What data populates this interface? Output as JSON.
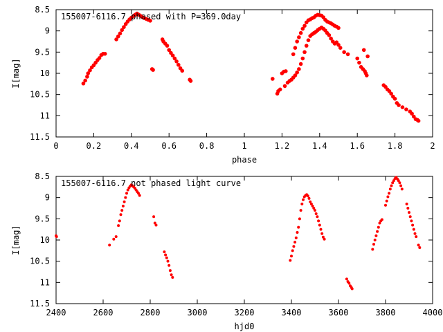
{
  "chart_data": [
    {
      "type": "scatter",
      "title": "155007-6116.7 phased with P=369.0day",
      "xlabel": "phase",
      "ylabel": "I[mag]",
      "xlim": [
        0,
        2
      ],
      "ylim": [
        11.5,
        8.5
      ],
      "y_inverted": true,
      "grid": false,
      "xticks": [
        0,
        0.2,
        0.4,
        0.6,
        0.8,
        1,
        1.2,
        1.4,
        1.6,
        1.8,
        2
      ],
      "xtick_labels": [
        "0",
        "0.2",
        "0.4",
        "0.6",
        "0.8",
        "1",
        "1.2",
        "1.4",
        "1.6",
        "1.8",
        "2"
      ],
      "yticks": [
        8.5,
        9,
        9.5,
        10,
        10.5,
        11,
        11.5
      ],
      "ytick_labels": [
        "8.5",
        "9",
        "9.5",
        "10",
        "10.5",
        "11",
        "11.5"
      ],
      "marker_color": "#ff0000",
      "series": [
        {
          "points": [
            [
              0.145,
              10.24
            ],
            [
              0.155,
              10.17
            ],
            [
              0.165,
              10.08
            ],
            [
              0.17,
              10.0
            ],
            [
              0.18,
              9.93
            ],
            [
              0.19,
              9.86
            ],
            [
              0.2,
              9.81
            ],
            [
              0.21,
              9.75
            ],
            [
              0.22,
              9.69
            ],
            [
              0.23,
              9.64
            ],
            [
              0.24,
              9.57
            ],
            [
              0.25,
              9.54
            ],
            [
              0.26,
              9.54
            ],
            [
              0.32,
              9.2
            ],
            [
              0.33,
              9.13
            ],
            [
              0.34,
              9.06
            ],
            [
              0.35,
              8.98
            ],
            [
              0.36,
              8.91
            ],
            [
              0.37,
              8.84
            ],
            [
              0.38,
              8.78
            ],
            [
              0.39,
              8.73
            ],
            [
              0.4,
              8.69
            ],
            [
              0.41,
              8.65
            ],
            [
              0.42,
              8.62
            ],
            [
              0.43,
              8.59
            ],
            [
              0.44,
              8.62
            ],
            [
              0.45,
              8.65
            ],
            [
              0.46,
              8.68
            ],
            [
              0.47,
              8.7
            ],
            [
              0.48,
              8.72
            ],
            [
              0.49,
              8.74
            ],
            [
              0.5,
              8.76
            ],
            [
              0.51,
              9.9
            ],
            [
              0.515,
              9.92
            ],
            [
              0.565,
              9.2
            ],
            [
              0.57,
              9.25
            ],
            [
              0.58,
              9.3
            ],
            [
              0.59,
              9.35
            ],
            [
              0.6,
              9.45
            ],
            [
              0.61,
              9.52
            ],
            [
              0.62,
              9.58
            ],
            [
              0.63,
              9.65
            ],
            [
              0.64,
              9.72
            ],
            [
              0.65,
              9.8
            ],
            [
              0.66,
              9.88
            ],
            [
              0.67,
              9.94
            ],
            [
              0.71,
              10.15
            ],
            [
              0.715,
              10.18
            ],
            [
              1.15,
              10.13
            ],
            [
              1.175,
              10.48
            ],
            [
              1.18,
              10.42
            ],
            [
              1.19,
              10.38
            ],
            [
              1.2,
              10.0
            ],
            [
              1.21,
              9.96
            ],
            [
              1.215,
              10.3
            ],
            [
              1.22,
              9.95
            ],
            [
              1.23,
              10.22
            ],
            [
              1.24,
              10.18
            ],
            [
              1.25,
              10.15
            ],
            [
              1.26,
              10.1
            ],
            [
              1.27,
              10.05
            ],
            [
              1.28,
              9.98
            ],
            [
              1.29,
              9.9
            ],
            [
              1.3,
              9.78
            ],
            [
              1.31,
              9.65
            ],
            [
              1.32,
              9.5
            ],
            [
              1.33,
              9.35
            ],
            [
              1.34,
              9.22
            ],
            [
              1.35,
              9.12
            ],
            [
              1.36,
              9.08
            ],
            [
              1.37,
              9.05
            ],
            [
              1.38,
              9.02
            ],
            [
              1.39,
              8.98
            ],
            [
              1.4,
              8.95
            ],
            [
              1.41,
              8.92
            ],
            [
              1.42,
              8.95
            ],
            [
              1.43,
              8.99
            ],
            [
              1.44,
              9.05
            ],
            [
              1.45,
              9.1
            ],
            [
              1.46,
              9.18
            ],
            [
              1.47,
              9.25
            ],
            [
              1.48,
              9.3
            ],
            [
              1.49,
              9.27
            ],
            [
              1.5,
              9.33
            ],
            [
              1.51,
              9.4
            ],
            [
              1.26,
              9.55
            ],
            [
              1.27,
              9.4
            ],
            [
              1.28,
              9.25
            ],
            [
              1.29,
              9.15
            ],
            [
              1.3,
              9.05
            ],
            [
              1.31,
              8.95
            ],
            [
              1.32,
              8.88
            ],
            [
              1.33,
              8.8
            ],
            [
              1.34,
              8.75
            ],
            [
              1.35,
              8.73
            ],
            [
              1.36,
              8.7
            ],
            [
              1.37,
              8.68
            ],
            [
              1.38,
              8.64
            ],
            [
              1.39,
              8.62
            ],
            [
              1.4,
              8.63
            ],
            [
              1.41,
              8.64
            ],
            [
              1.42,
              8.68
            ],
            [
              1.43,
              8.74
            ],
            [
              1.44,
              8.78
            ],
            [
              1.45,
              8.8
            ],
            [
              1.46,
              8.82
            ],
            [
              1.47,
              8.85
            ],
            [
              1.48,
              8.88
            ],
            [
              1.49,
              8.9
            ],
            [
              1.5,
              8.93
            ],
            [
              1.53,
              9.5
            ],
            [
              1.55,
              9.55
            ],
            [
              1.6,
              9.65
            ],
            [
              1.61,
              9.75
            ],
            [
              1.62,
              9.85
            ],
            [
              1.63,
              9.9
            ],
            [
              1.635,
              9.45
            ],
            [
              1.64,
              9.95
            ],
            [
              1.645,
              10.0
            ],
            [
              1.65,
              10.05
            ],
            [
              1.655,
              9.6
            ],
            [
              1.74,
              10.28
            ],
            [
              1.75,
              10.32
            ],
            [
              1.76,
              10.38
            ],
            [
              1.77,
              10.42
            ],
            [
              1.78,
              10.48
            ],
            [
              1.79,
              10.55
            ],
            [
              1.8,
              10.6
            ],
            [
              1.81,
              10.7
            ],
            [
              1.82,
              10.75
            ],
            [
              1.84,
              10.8
            ],
            [
              1.86,
              10.85
            ],
            [
              1.88,
              10.9
            ],
            [
              1.89,
              10.95
            ],
            [
              1.9,
              11.02
            ],
            [
              1.91,
              11.08
            ],
            [
              1.92,
              11.1
            ],
            [
              1.925,
              11.12
            ]
          ]
        }
      ]
    },
    {
      "type": "scatter",
      "title": "155007-6116.7 not phased light curve",
      "xlabel": "hjd0",
      "ylabel": "I[mag]",
      "xlim": [
        2400,
        4000
      ],
      "ylim": [
        11.5,
        8.5
      ],
      "y_inverted": true,
      "grid": false,
      "xticks": [
        2400,
        2600,
        2800,
        3000,
        3200,
        3400,
        3600,
        3800,
        4000
      ],
      "xtick_labels": [
        "2400",
        "2600",
        "2800",
        "3000",
        "3200",
        "3400",
        "3600",
        "3800",
        "4000"
      ],
      "yticks": [
        8.5,
        9,
        9.5,
        10,
        10.5,
        11,
        11.5
      ],
      "ytick_labels": [
        "8.5",
        "9",
        "9.5",
        "10",
        "10.5",
        "11",
        "11.5"
      ],
      "marker_color": "#ff0000",
      "series": [
        {
          "points": [
            [
              2400,
              9.9
            ],
            [
              2402,
              9.92
            ],
            [
              2627,
              10.12
            ],
            [
              2645,
              9.98
            ],
            [
              2655,
              9.92
            ],
            [
              2665,
              9.66
            ],
            [
              2670,
              9.55
            ],
            [
              2675,
              9.4
            ],
            [
              2680,
              9.3
            ],
            [
              2685,
              9.2
            ],
            [
              2690,
              9.1
            ],
            [
              2695,
              9.0
            ],
            [
              2700,
              8.9
            ],
            [
              2705,
              8.82
            ],
            [
              2710,
              8.77
            ],
            [
              2715,
              8.73
            ],
            [
              2720,
              8.7
            ],
            [
              2725,
              8.72
            ],
            [
              2730,
              8.75
            ],
            [
              2735,
              8.78
            ],
            [
              2740,
              8.82
            ],
            [
              2745,
              8.86
            ],
            [
              2750,
              8.9
            ],
            [
              2755,
              8.95
            ],
            [
              2815,
              9.45
            ],
            [
              2820,
              9.6
            ],
            [
              2825,
              9.65
            ],
            [
              2860,
              10.28
            ],
            [
              2865,
              10.35
            ],
            [
              2870,
              10.42
            ],
            [
              2875,
              10.5
            ],
            [
              2880,
              10.6
            ],
            [
              2885,
              10.72
            ],
            [
              2890,
              10.82
            ],
            [
              2895,
              10.88
            ],
            [
              3395,
              10.48
            ],
            [
              3400,
              10.38
            ],
            [
              3405,
              10.25
            ],
            [
              3410,
              10.15
            ],
            [
              3415,
              10.05
            ],
            [
              3420,
              9.95
            ],
            [
              3425,
              9.82
            ],
            [
              3430,
              9.7
            ],
            [
              3435,
              9.5
            ],
            [
              3440,
              9.3
            ],
            [
              3445,
              9.15
            ],
            [
              3450,
              9.05
            ],
            [
              3455,
              8.98
            ],
            [
              3460,
              8.95
            ],
            [
              3465,
              8.93
            ],
            [
              3470,
              8.96
            ],
            [
              3475,
              9.02
            ],
            [
              3480,
              9.1
            ],
            [
              3485,
              9.15
            ],
            [
              3490,
              9.2
            ],
            [
              3495,
              9.25
            ],
            [
              3500,
              9.3
            ],
            [
              3505,
              9.38
            ],
            [
              3510,
              9.45
            ],
            [
              3515,
              9.55
            ],
            [
              3520,
              9.65
            ],
            [
              3525,
              9.75
            ],
            [
              3530,
              9.85
            ],
            [
              3535,
              9.93
            ],
            [
              3540,
              9.98
            ],
            [
              3635,
              10.92
            ],
            [
              3640,
              10.98
            ],
            [
              3645,
              11.02
            ],
            [
              3650,
              11.08
            ],
            [
              3655,
              11.12
            ],
            [
              3658,
              11.15
            ],
            [
              3745,
              10.22
            ],
            [
              3750,
              10.1
            ],
            [
              3755,
              10.0
            ],
            [
              3760,
              9.9
            ],
            [
              3765,
              9.8
            ],
            [
              3770,
              9.7
            ],
            [
              3775,
              9.6
            ],
            [
              3780,
              9.55
            ],
            [
              3785,
              9.52
            ],
            [
              3800,
              9.18
            ],
            [
              3805,
              9.08
            ],
            [
              3810,
              8.98
            ],
            [
              3815,
              8.9
            ],
            [
              3820,
              8.8
            ],
            [
              3825,
              8.72
            ],
            [
              3830,
              8.65
            ],
            [
              3835,
              8.6
            ],
            [
              3840,
              8.55
            ],
            [
              3845,
              8.52
            ],
            [
              3850,
              8.56
            ],
            [
              3855,
              8.6
            ],
            [
              3860,
              8.65
            ],
            [
              3865,
              8.72
            ],
            [
              3870,
              8.8
            ],
            [
              3890,
              9.15
            ],
            [
              3895,
              9.25
            ],
            [
              3900,
              9.35
            ],
            [
              3905,
              9.45
            ],
            [
              3910,
              9.55
            ],
            [
              3915,
              9.65
            ],
            [
              3920,
              9.75
            ],
            [
              3925,
              9.85
            ],
            [
              3930,
              9.92
            ],
            [
              3940,
              10.12
            ],
            [
              3945,
              10.18
            ]
          ]
        }
      ]
    }
  ]
}
